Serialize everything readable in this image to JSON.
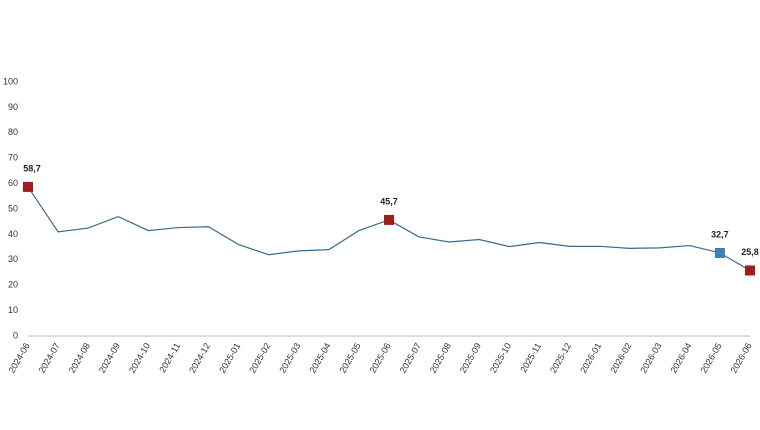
{
  "chart_data": {
    "type": "line",
    "categories": [
      "2024-06",
      "2024-07",
      "2024-08",
      "2024-09",
      "2024-10",
      "2024-11",
      "2024-12",
      "2025-01",
      "2025-02",
      "2025-03",
      "2025-04",
      "2025-05",
      "2025-06",
      "2025-07",
      "2025-08",
      "2025-09",
      "2025-10",
      "2025-11",
      "2025-12",
      "2026-01",
      "2026-02",
      "2026-03",
      "2026-04",
      "2026-05",
      "2026-06"
    ],
    "series": [
      {
        "color": "#3a6b8c",
        "values": [
          58.7,
          41,
          42.5,
          47,
          41.5,
          42.7,
          43,
          36,
          32,
          33.5,
          34,
          41.5,
          45.7,
          39,
          37,
          38,
          35.2,
          36.8,
          35.3,
          35.3,
          34.5,
          34.7,
          35.6,
          32.7,
          25.8
        ],
        "value_labels": [
          "58,7",
          null,
          null,
          null,
          null,
          null,
          null,
          null,
          null,
          null,
          null,
          null,
          "45,7",
          null,
          null,
          null,
          null,
          null,
          null,
          null,
          null,
          null,
          null,
          "32,7",
          "25,8"
        ],
        "marker_colors": [
          "#a31b1b",
          null,
          null,
          null,
          null,
          null,
          null,
          null,
          null,
          null,
          null,
          null,
          "#a31b1b",
          null,
          null,
          null,
          null,
          null,
          null,
          null,
          null,
          null,
          null,
          "#3f7fb0",
          "#a31b1b"
        ]
      }
    ],
    "ylim": [
      0,
      100
    ],
    "yticks": [
      0,
      10,
      20,
      30,
      40,
      50,
      60,
      70,
      80,
      90,
      100
    ],
    "grid": false
  }
}
